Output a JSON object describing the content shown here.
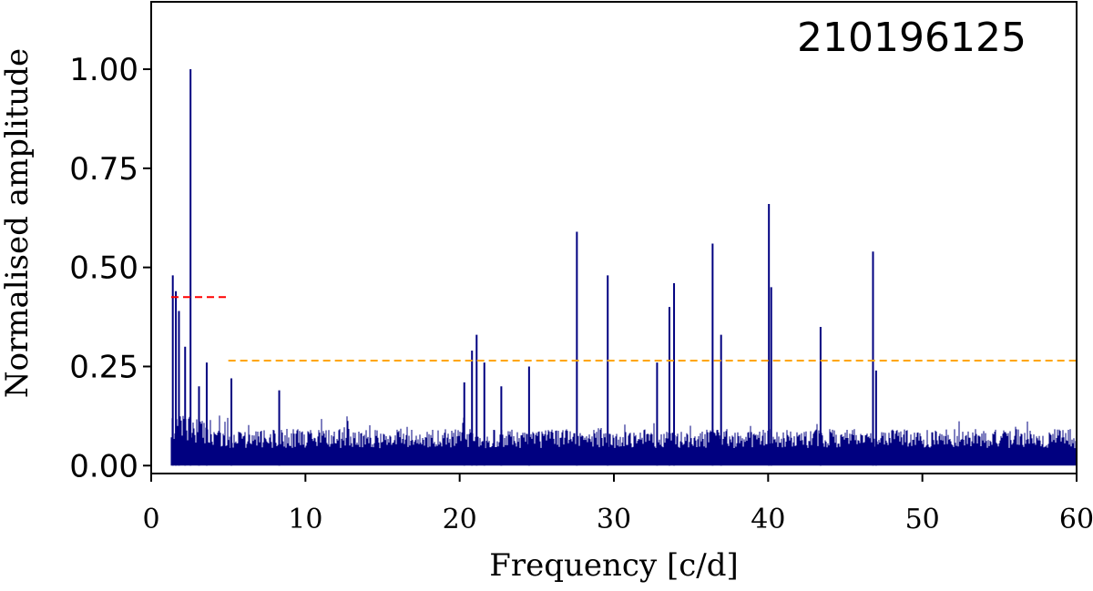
{
  "chart_data": {
    "type": "line",
    "title": "",
    "annotation": "210196125",
    "xlabel": "Frequency [c/d]",
    "ylabel": "Normalised amplitude",
    "xlim": [
      0,
      60
    ],
    "ylim": [
      -0.02,
      1.17
    ],
    "xticks": [
      0,
      10,
      20,
      30,
      40,
      50,
      60
    ],
    "xtick_labels": [
      "0",
      "10",
      "20",
      "30",
      "40",
      "50",
      "60"
    ],
    "yticks": [
      0.0,
      0.25,
      0.5,
      0.75,
      1.0
    ],
    "ytick_labels": [
      "0.00",
      "0.25",
      "0.50",
      "0.75",
      "1.00"
    ],
    "grid": false,
    "series_color": "#000080",
    "frequency_range": [
      1.3,
      60
    ],
    "noise_level_below_5": 0.12,
    "noise_level_5_to_60": 0.08,
    "peaks": [
      {
        "x": 1.4,
        "y": 0.48
      },
      {
        "x": 1.6,
        "y": 0.44
      },
      {
        "x": 1.8,
        "y": 0.39
      },
      {
        "x": 2.2,
        "y": 0.3
      },
      {
        "x": 2.55,
        "y": 1.0
      },
      {
        "x": 3.1,
        "y": 0.2
      },
      {
        "x": 3.6,
        "y": 0.26
      },
      {
        "x": 5.2,
        "y": 0.22
      },
      {
        "x": 8.3,
        "y": 0.19
      },
      {
        "x": 20.3,
        "y": 0.21
      },
      {
        "x": 20.8,
        "y": 0.29
      },
      {
        "x": 21.1,
        "y": 0.33
      },
      {
        "x": 21.6,
        "y": 0.26
      },
      {
        "x": 22.7,
        "y": 0.2
      },
      {
        "x": 24.5,
        "y": 0.25
      },
      {
        "x": 27.6,
        "y": 0.59
      },
      {
        "x": 29.6,
        "y": 0.48
      },
      {
        "x": 32.8,
        "y": 0.26
      },
      {
        "x": 33.6,
        "y": 0.4
      },
      {
        "x": 33.9,
        "y": 0.46
      },
      {
        "x": 36.4,
        "y": 0.56
      },
      {
        "x": 36.95,
        "y": 0.33
      },
      {
        "x": 40.05,
        "y": 0.66
      },
      {
        "x": 40.2,
        "y": 0.45
      },
      {
        "x": 43.4,
        "y": 0.35
      },
      {
        "x": 46.8,
        "y": 0.54
      },
      {
        "x": 47.0,
        "y": 0.24
      }
    ],
    "thresholds": [
      {
        "x_start": 1.3,
        "x_end": 5.0,
        "y": 0.425,
        "color": "#ff0000",
        "style": "dashed"
      },
      {
        "x_start": 5.0,
        "x_end": 60,
        "y": 0.265,
        "color": "#ffa500",
        "style": "dashed"
      }
    ]
  }
}
